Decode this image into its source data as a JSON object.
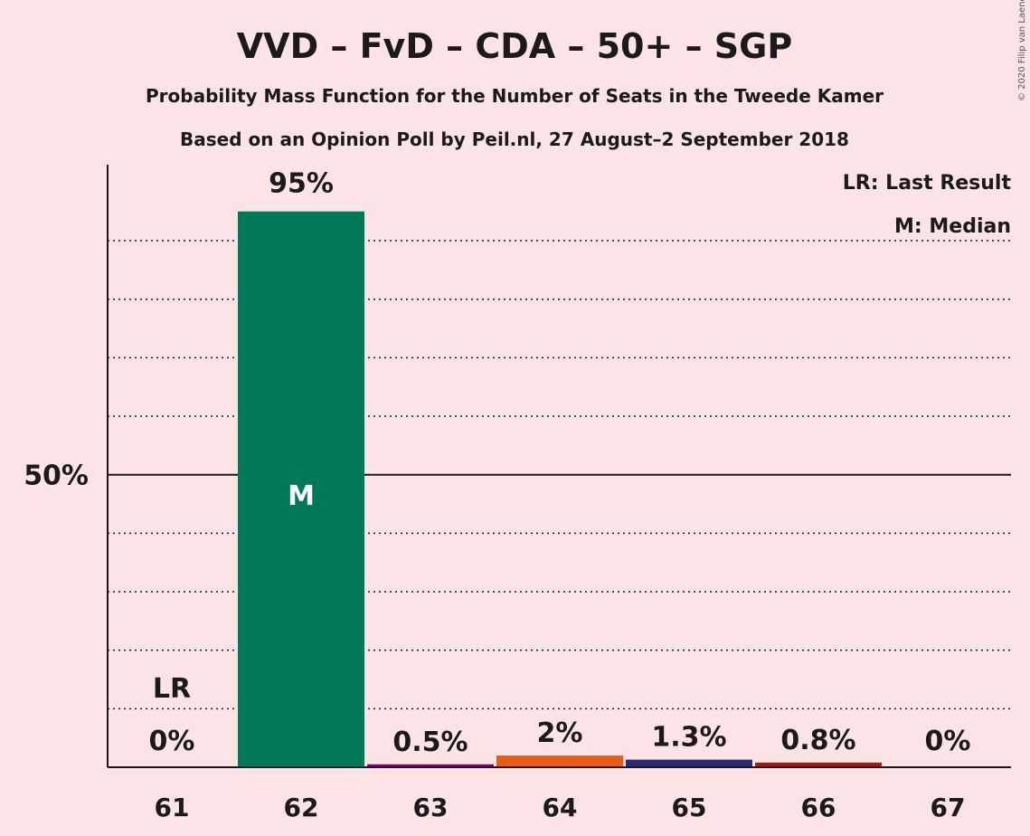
{
  "chart_data": {
    "type": "bar",
    "title": "VVD – FvD – CDA – 50+ – SGP",
    "subtitle": "Probability Mass Function for the Number of Seats in the Tweede Kamer",
    "subtitle2": "Based on an Opinion Poll by Peil.nl, 27 August–2 September 2018",
    "copyright": "© 2020 Filip van Laenen",
    "legend": [
      "LR: Last Result",
      "M: Median"
    ],
    "legend_placement": "top-right",
    "categories": [
      "61",
      "62",
      "63",
      "64",
      "65",
      "66",
      "67"
    ],
    "values": [
      0,
      95,
      0.5,
      2,
      1.3,
      0.8,
      0
    ],
    "labels": [
      "0%",
      "95%",
      "0.5%",
      "2%",
      "1.3%",
      "0.8%",
      "0%"
    ],
    "colors": [
      "#00785a",
      "#00785a",
      "#800080",
      "#e85c10",
      "#2b2b6e",
      "#a01818",
      "#00785a"
    ],
    "ylim": [
      0,
      103
    ],
    "yticks": [
      {
        "value": 50,
        "label": "50%"
      }
    ],
    "gridlines": [
      10,
      20,
      30,
      40,
      60,
      70,
      80,
      90
    ],
    "last_result": {
      "index": 0,
      "label": "LR"
    },
    "median": {
      "index": 1,
      "label": "M"
    },
    "grid": true
  }
}
